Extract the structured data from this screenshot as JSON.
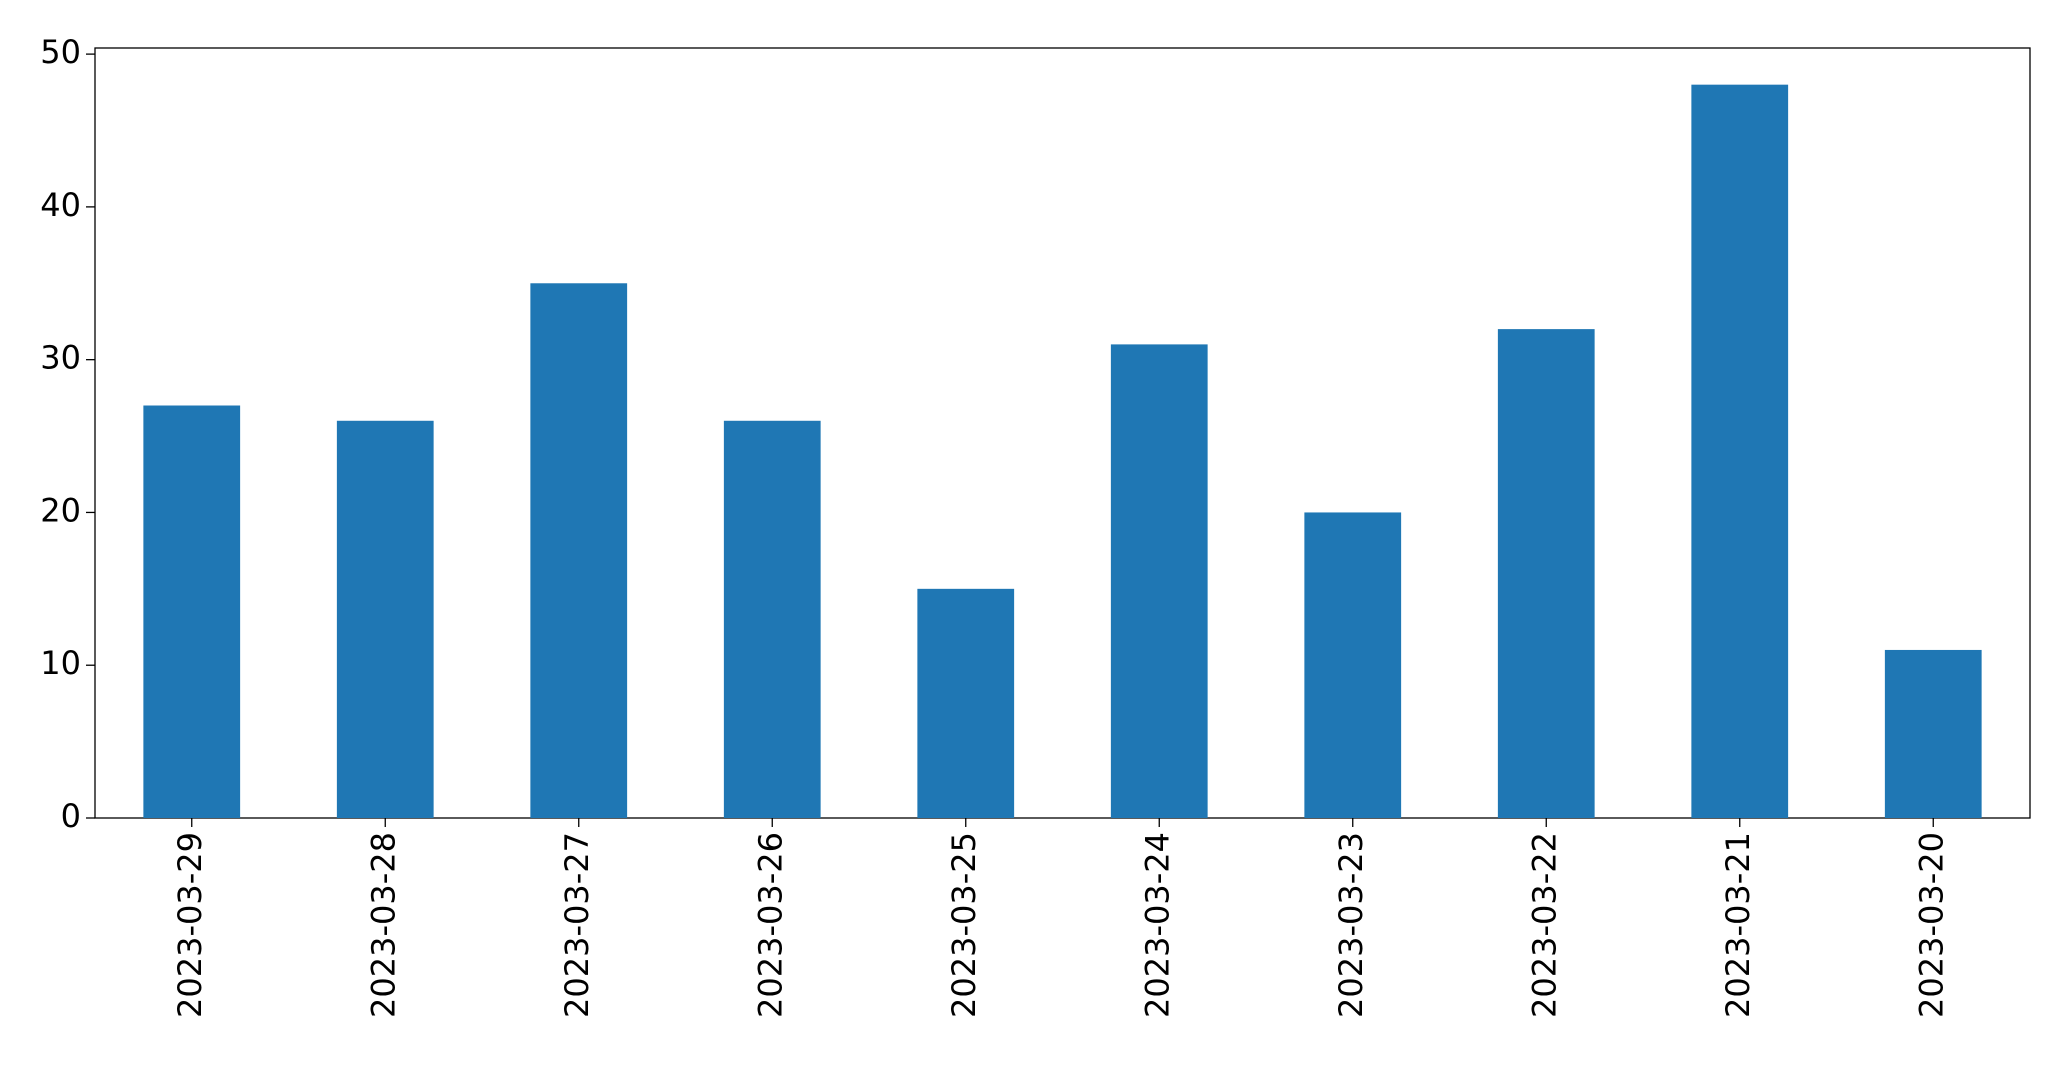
{
  "chart_data": {
    "type": "bar",
    "categories": [
      "2023-03-29",
      "2023-03-28",
      "2023-03-27",
      "2023-03-26",
      "2023-03-25",
      "2023-03-24",
      "2023-03-23",
      "2023-03-22",
      "2023-03-21",
      "2023-03-20"
    ],
    "values": [
      27,
      26,
      35,
      26,
      15,
      31,
      20,
      32,
      48,
      11
    ],
    "color": "#1f77b4",
    "ylim": [
      0,
      50.4
    ],
    "yticks": [
      0,
      10,
      20,
      30,
      40,
      50
    ],
    "grid": false
  }
}
